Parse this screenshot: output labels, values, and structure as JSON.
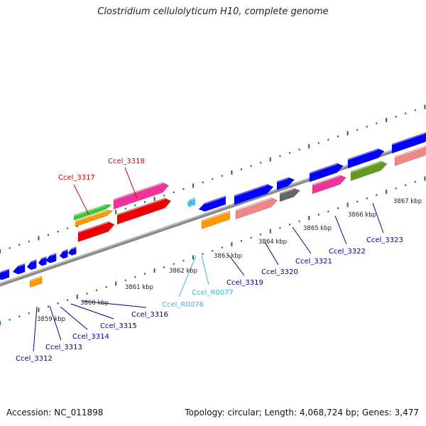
{
  "title": "Clostridium cellulolyticum H10, complete genome",
  "footer": {
    "accession": "Accession: NC_011898",
    "summary": "Topology: circular; Length: 4,068,724 bp; Genes: 3,477"
  },
  "colors": {
    "background": "#ffffff",
    "backbone": "#8a8a8a",
    "gc_ticks": "#1a7a1a",
    "cds_default": "#0000ff",
    "rna": "#33ccee",
    "label_gene": "#00008b",
    "label_highlight": "#cc0000",
    "label_rna": "#33bbdd",
    "cog_orange": "#ff9900",
    "cog_green": "#33cc33",
    "cog_pink": "#ee3399",
    "cog_red": "#ee0000",
    "cog_salmon": "#ee8888",
    "cog_olive": "#669922",
    "cog_gray": "#666666"
  },
  "scale_labels": [
    "3859 kbp",
    "3860 kbp",
    "3861 kbp",
    "3862 kbp",
    "3863 kbp",
    "3864 kbp",
    "3865 kbp",
    "3866 kbp",
    "3867 kbp"
  ],
  "gene_labels": [
    {
      "text": "Ccel_3312",
      "kind": "gene"
    },
    {
      "text": "Ccel_3313",
      "kind": "gene"
    },
    {
      "text": "Ccel_3314",
      "kind": "gene"
    },
    {
      "text": "Ccel_3315",
      "kind": "gene"
    },
    {
      "text": "Ccel_3316",
      "kind": "gene"
    },
    {
      "text": "Ccel_3317",
      "kind": "highlight"
    },
    {
      "text": "Ccel_3318",
      "kind": "highlight"
    },
    {
      "text": "Ccel_R0076",
      "kind": "rna"
    },
    {
      "text": "Ccel_R0077",
      "kind": "rna"
    },
    {
      "text": "Ccel_3319",
      "kind": "gene"
    },
    {
      "text": "Ccel_3320",
      "kind": "gene"
    },
    {
      "text": "Ccel_3321",
      "kind": "gene"
    },
    {
      "text": "Ccel_3322",
      "kind": "gene"
    },
    {
      "text": "Ccel_3323",
      "kind": "gene"
    }
  ]
}
